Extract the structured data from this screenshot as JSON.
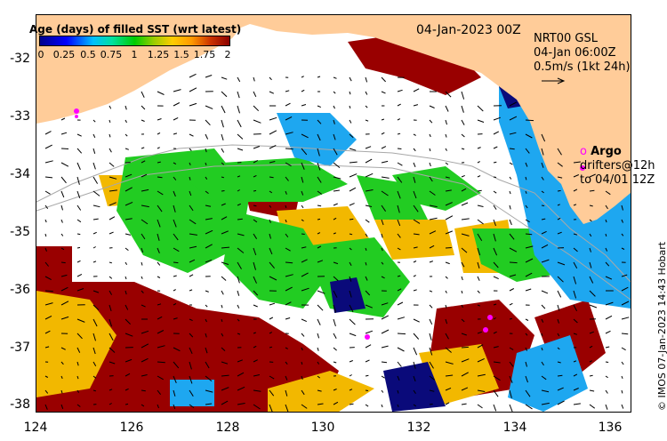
{
  "legend": {
    "title": "Age (days) of filled SST (wrt latest)",
    "ticks": [
      "0",
      "0.25",
      "0.5",
      "0.75",
      "1",
      "1.25",
      "1.5",
      "1.75",
      "2"
    ]
  },
  "header": {
    "date": "04-Jan-2023 00Z"
  },
  "currents": {
    "line1": "NRT00 GSL",
    "line2": "04-Jan 06:00Z",
    "line3": "0.5m/s (1kt 24h)"
  },
  "argo": {
    "title": "Argo",
    "line2": "drifters@12h",
    "line3": "to 04/01 12Z"
  },
  "axes": {
    "y_ticks": [
      "-32",
      "-33",
      "-34",
      "-35",
      "-36",
      "-37",
      "-38"
    ],
    "x_ticks": [
      "124",
      "126",
      "128",
      "130",
      "132",
      "134",
      "136"
    ]
  },
  "credit": "© IMOS 07-Jan-2023 14:43 Hobart",
  "colors": {
    "land": "#ffcc99",
    "age_0": "#00008b",
    "age_05": "#00bfff",
    "age_1": "#00cc00",
    "age_15": "#ffcc00",
    "age_2": "#8b0000",
    "argo": "#ff00ff"
  }
}
